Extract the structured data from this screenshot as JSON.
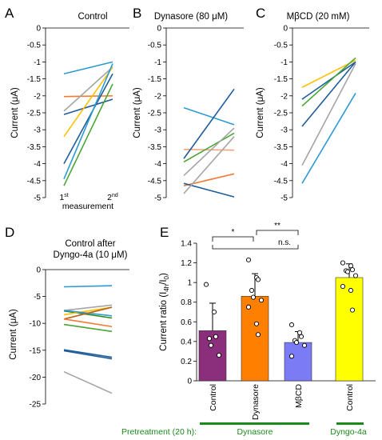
{
  "colors": {
    "lightblue": "#2e9ad3",
    "orange": "#f47b35",
    "darkblue": "#1f5c99",
    "gray": "#a5a5a5",
    "yellow": "#ffc000",
    "green": "#4aa533",
    "salmon": "#f4a07c",
    "darkgreen": "#2f8a1f",
    "brown": "#b5651d",
    "purple": "#8b2f7c",
    "barorange": "#ff7f00",
    "periwinkle": "#7b7bf5",
    "baryellow": "#ffff00",
    "annotation_green": "#1a8a1a"
  },
  "footer": {
    "pretreatment_label": "Pretreatment (20 h):",
    "dynasore_label": "Dynasore",
    "dyngo_label": "Dyngo-4a"
  },
  "chart_data": [
    {
      "panel": "A",
      "type": "line",
      "title": "Control",
      "ylabel": "Current (μA)",
      "x_label_1": "1st",
      "x_label_1_base": "1",
      "x_label_1_sup": "st",
      "x_label_2_base": "2",
      "x_label_2_sup": "nd",
      "x_caption": "measurement",
      "ylim": [
        -5,
        0
      ],
      "yticks": [
        "0",
        "-0.5",
        "-1",
        "-1.5",
        "-2",
        "-2.5",
        "-3",
        "-3.5",
        "-4",
        "-4.5",
        "-5"
      ],
      "series": [
        {
          "color": "lightblue",
          "values": [
            -1.35,
            -1.0
          ]
        },
        {
          "color": "orange",
          "values": [
            -2.02,
            -2.0
          ]
        },
        {
          "color": "gray",
          "values": [
            -2.45,
            -1.15
          ]
        },
        {
          "color": "darkblue",
          "values": [
            -2.55,
            -2.1
          ]
        },
        {
          "color": "yellow",
          "values": [
            -3.2,
            -1.15
          ]
        },
        {
          "color": "darkblue",
          "values": [
            -4.0,
            -1.35
          ]
        },
        {
          "color": "lightblue",
          "values": [
            -4.45,
            -1.05
          ]
        },
        {
          "color": "green",
          "values": [
            -4.65,
            -1.65
          ]
        }
      ]
    },
    {
      "panel": "B",
      "type": "line",
      "title": "Dynasore (80 μM)",
      "ylabel": "Current (μA)",
      "ylim": [
        -5,
        0
      ],
      "yticks": [
        "0",
        "-0.5",
        "-1",
        "-1.5",
        "-2",
        "-2.5",
        "-3",
        "-3.5",
        "-4",
        "-4.5",
        "-5"
      ],
      "series": [
        {
          "color": "lightblue",
          "values": [
            -2.35,
            -2.85
          ]
        },
        {
          "color": "salmon",
          "values": [
            -3.58,
            -3.6
          ]
        },
        {
          "color": "darkblue",
          "values": [
            -3.85,
            -1.8
          ]
        },
        {
          "color": "green",
          "values": [
            -3.95,
            -3.1
          ]
        },
        {
          "color": "gray",
          "values": [
            -4.35,
            -2.95
          ]
        },
        {
          "color": "orange",
          "values": [
            -4.65,
            -4.3
          ]
        },
        {
          "color": "darkblue",
          "values": [
            -4.58,
            -4.98
          ]
        },
        {
          "color": "gray",
          "values": [
            -4.88,
            -3.2
          ]
        }
      ]
    },
    {
      "panel": "C",
      "type": "line",
      "title": "MβCD (20 mM)",
      "ylabel": "Current (μA)",
      "ylim": [
        -5,
        0
      ],
      "yticks": [
        "0",
        "-0.5",
        "-1",
        "-1.5",
        "-2",
        "-2.5",
        "-3",
        "-3.5",
        "-4",
        "-4.5",
        "-5"
      ],
      "series": [
        {
          "color": "yellow",
          "values": [
            -1.75,
            -0.95
          ]
        },
        {
          "color": "darkblue",
          "values": [
            -2.1,
            -1.0
          ]
        },
        {
          "color": "green",
          "values": [
            -2.3,
            -0.88
          ]
        },
        {
          "color": "darkblue",
          "values": [
            -2.9,
            -1.0
          ]
        },
        {
          "color": "gray",
          "values": [
            -4.05,
            -1.05
          ]
        },
        {
          "color": "lightblue",
          "values": [
            -4.58,
            -1.92
          ]
        }
      ]
    },
    {
      "panel": "D",
      "type": "line",
      "title": "Control after Dyngo-4a (10 μM)",
      "title_line1": "Control after",
      "title_line2": "Dyngo-4a (10 μM)",
      "ylabel": "Current (μA)",
      "ylim": [
        -25,
        0
      ],
      "yticks": [
        "0",
        "-5",
        "-10",
        "-15",
        "-20",
        "-25"
      ],
      "series": [
        {
          "color": "lightblue",
          "values": [
            -3.2,
            -3.0
          ]
        },
        {
          "color": "gray",
          "values": [
            -7.6,
            -6.6
          ]
        },
        {
          "color": "darkgreen",
          "values": [
            -7.7,
            -9.0
          ]
        },
        {
          "color": "yellow",
          "values": [
            -8.4,
            -7.0
          ]
        },
        {
          "color": "lightblue",
          "values": [
            -7.6,
            -8.6
          ]
        },
        {
          "color": "brown",
          "values": [
            -9.2,
            -7.0
          ]
        },
        {
          "color": "orange",
          "values": [
            -9.2,
            -10.6
          ]
        },
        {
          "color": "green",
          "values": [
            -10.2,
            -11.5
          ]
        },
        {
          "color": "darkblue",
          "values": [
            -14.9,
            -16.3
          ]
        },
        {
          "color": "darkblue",
          "values": [
            -15.1,
            -16.6
          ]
        },
        {
          "color": "gray",
          "values": [
            -19.0,
            -23.0
          ]
        }
      ]
    },
    {
      "panel": "E",
      "type": "bar",
      "ylabel": "Current ratio (I4h/I0)",
      "ylabel_main": "Current ratio (I",
      "ylabel_sub1": "4h",
      "ylabel_mid": "/I",
      "ylabel_sub2": "0",
      "ylabel_end": ")",
      "ylim": [
        0,
        1.4
      ],
      "yticks": [
        "0",
        "0.2",
        "0.4",
        "0.6",
        "0.8",
        "1",
        "1.2",
        "1.4"
      ],
      "categories": [
        "Control",
        "Dynasore",
        "MβCD",
        "Control"
      ],
      "values": [
        0.51,
        0.86,
        0.39,
        1.05
      ],
      "errors": [
        0.28,
        0.23,
        0.11,
        0.14
      ],
      "bar_colors": [
        "purple",
        "barorange",
        "periwinkle",
        "baryellow"
      ],
      "points": [
        [
          0.98,
          0.7,
          0.45,
          0.43,
          0.36,
          0.26
        ],
        [
          1.23,
          1.05,
          1.03,
          0.92,
          0.85,
          0.82,
          0.75,
          0.58,
          0.47
        ],
        [
          0.57,
          0.49,
          0.45,
          0.41,
          0.39,
          0.36,
          0.25
        ],
        [
          1.2,
          1.17,
          1.13,
          1.12,
          1.11,
          1.07,
          0.96,
          0.92,
          0.72
        ]
      ],
      "significance": [
        {
          "from": 0,
          "to": 1,
          "label": "*"
        },
        {
          "from": 1,
          "to": 2,
          "label": "**"
        },
        {
          "from": 1,
          "to": 2,
          "label": "n.s.",
          "outer_from": 0
        }
      ]
    }
  ]
}
